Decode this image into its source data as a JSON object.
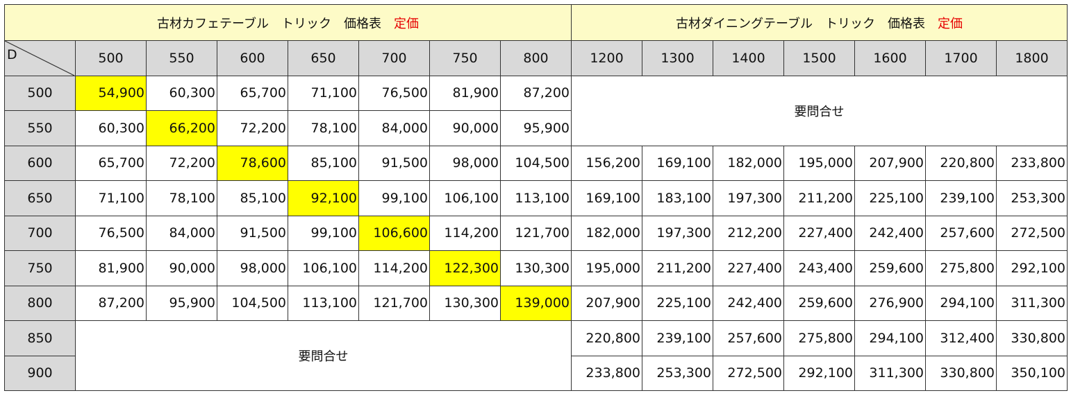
{
  "cafe": {
    "title": "古材カフェテーブル　トリック　価格表",
    "price_label": "定価",
    "col_headers": [
      "500",
      "550",
      "600",
      "650",
      "700",
      "750",
      "800"
    ],
    "rows": [
      [
        "54,900",
        "60,300",
        "65,700",
        "71,100",
        "76,500",
        "81,900",
        "87,200"
      ],
      [
        "60,300",
        "66,200",
        "72,200",
        "78,100",
        "84,000",
        "90,000",
        "95,900"
      ],
      [
        "65,700",
        "72,200",
        "78,600",
        "85,100",
        "91,500",
        "98,000",
        "104,500"
      ],
      [
        "71,100",
        "78,100",
        "85,100",
        "92,100",
        "99,100",
        "106,100",
        "113,100"
      ],
      [
        "76,500",
        "84,000",
        "91,500",
        "99,100",
        "106,600",
        "114,200",
        "121,700"
      ],
      [
        "81,900",
        "90,000",
        "98,000",
        "106,100",
        "114,200",
        "122,300",
        "130,300"
      ],
      [
        "87,200",
        "95,900",
        "104,500",
        "113,100",
        "121,700",
        "130,300",
        "139,000"
      ]
    ],
    "inquiry": "要問合せ"
  },
  "dining": {
    "title": "古材ダイニングテーブル　トリック　価格表",
    "price_label": "定価",
    "col_headers": [
      "1200",
      "1300",
      "1400",
      "1500",
      "1600",
      "1700",
      "1800"
    ],
    "rows": [
      [
        "156,200",
        "169,100",
        "182,000",
        "195,000",
        "207,900",
        "220,800",
        "233,800"
      ],
      [
        "169,100",
        "183,100",
        "197,300",
        "211,200",
        "225,100",
        "239,100",
        "253,300"
      ],
      [
        "182,000",
        "197,300",
        "212,200",
        "227,400",
        "242,400",
        "257,600",
        "272,500"
      ],
      [
        "195,000",
        "211,200",
        "227,400",
        "243,400",
        "259,600",
        "275,800",
        "292,100"
      ],
      [
        "207,900",
        "225,100",
        "242,400",
        "259,600",
        "276,900",
        "294,100",
        "311,300"
      ],
      [
        "220,800",
        "239,100",
        "257,600",
        "275,800",
        "294,100",
        "312,400",
        "330,800"
      ],
      [
        "233,800",
        "253,300",
        "272,500",
        "292,100",
        "311,300",
        "330,800",
        "350,100"
      ]
    ],
    "inquiry": "要問合せ"
  },
  "corner_label": "D",
  "row_headers": [
    "500",
    "550",
    "600",
    "650",
    "700",
    "750",
    "800",
    "850",
    "900"
  ],
  "colors": {
    "title_bg": "#fdfbc7",
    "header_bg": "#d9d9d9",
    "highlight": "#ffff00",
    "price_red": "#e60000"
  }
}
